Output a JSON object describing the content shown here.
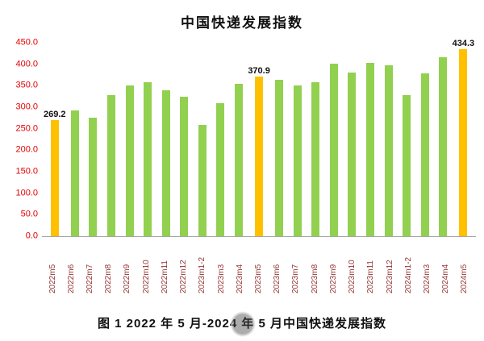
{
  "figure_caption": "图 1 2022 年 5 月-2024 年 5 月中国快递发展指数",
  "chart_data": {
    "type": "bar",
    "title": "中国快递发展指数",
    "categories": [
      "2022m5",
      "2022m6",
      "2022m7",
      "2022m8",
      "2022m9",
      "2022m10",
      "2022m11",
      "2022m12",
      "2023m1-2",
      "2023m3",
      "2023m4",
      "2023m5",
      "2023m6",
      "2023m7",
      "2023m8",
      "2023m9",
      "2023m10",
      "2023m11",
      "2023m12",
      "2024m1-2",
      "2024m3",
      "2024m4",
      "2024m5"
    ],
    "values": [
      269.2,
      292,
      275,
      328,
      351,
      359,
      340,
      324,
      258,
      309,
      355,
      370.9,
      364,
      351,
      358,
      402,
      381,
      404,
      398,
      328,
      379,
      417,
      434.3
    ],
    "annotations": [
      {
        "index": 0,
        "text": "269.2"
      },
      {
        "index": 11,
        "text": "370.9"
      },
      {
        "index": 22,
        "text": "434.3"
      }
    ],
    "highlight_indices": [
      0,
      11,
      22
    ],
    "bar_color": "#92D050",
    "highlight_color": "#FFC000",
    "ylim": [
      0,
      450
    ],
    "ytick_step": 50,
    "ytick_labels": [
      "0.0",
      "50.0",
      "100.0",
      "150.0",
      "200.0",
      "250.0",
      "300.0",
      "350.0",
      "400.0",
      "450.0"
    ],
    "xlabel": "",
    "ylabel": "",
    "grid": false,
    "legend": false
  }
}
